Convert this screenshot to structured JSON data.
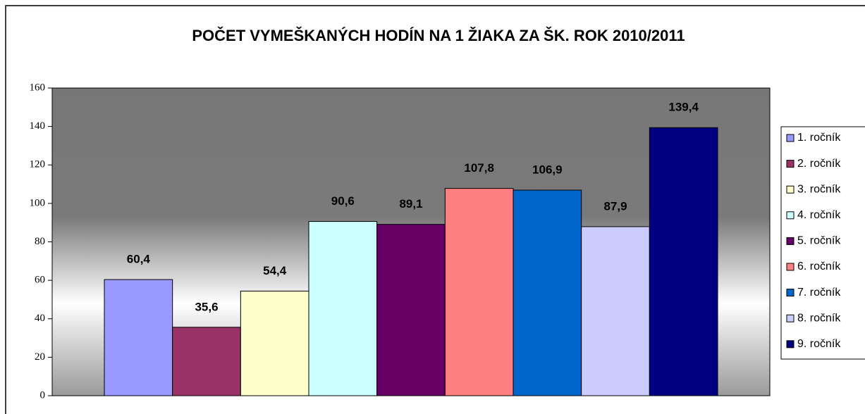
{
  "chart_data": {
    "type": "bar",
    "title": "POČET VYMEŠKANÝCH HODÍN NA 1 ŽIAKA ZA ŠK. ROK 2010/2011",
    "series": [
      {
        "name": "1. ročník",
        "color": "#9999ff",
        "values": [
          60.4
        ],
        "value_labels": [
          "60,4"
        ]
      },
      {
        "name": "2. ročník",
        "color": "#993366",
        "values": [
          35.6
        ],
        "value_labels": [
          "35,6"
        ]
      },
      {
        "name": "3. ročník",
        "color": "#ffffcc",
        "values": [
          54.4
        ],
        "value_labels": [
          "54,4"
        ]
      },
      {
        "name": "4. ročník",
        "color": "#ccffff",
        "values": [
          90.6
        ],
        "value_labels": [
          "90,6"
        ]
      },
      {
        "name": "5. ročník",
        "color": "#660066",
        "values": [
          89.1
        ],
        "value_labels": [
          "89,1"
        ]
      },
      {
        "name": "6. ročník",
        "color": "#ff8080",
        "values": [
          107.8
        ],
        "value_labels": [
          "107,8"
        ]
      },
      {
        "name": "7. ročník",
        "color": "#0066cc",
        "values": [
          106.9
        ],
        "value_labels": [
          "106,9"
        ]
      },
      {
        "name": "8. ročník",
        "color": "#ccccff",
        "values": [
          87.9
        ],
        "value_labels": [
          "87,9"
        ]
      },
      {
        "name": "9. ročník",
        "color": "#000080",
        "values": [
          139.4
        ],
        "value_labels": [
          "139,4"
        ]
      }
    ],
    "ylim": [
      0,
      160
    ],
    "yticks": [
      0,
      20,
      40,
      60,
      80,
      100,
      120,
      140,
      160
    ],
    "legend": "right"
  }
}
